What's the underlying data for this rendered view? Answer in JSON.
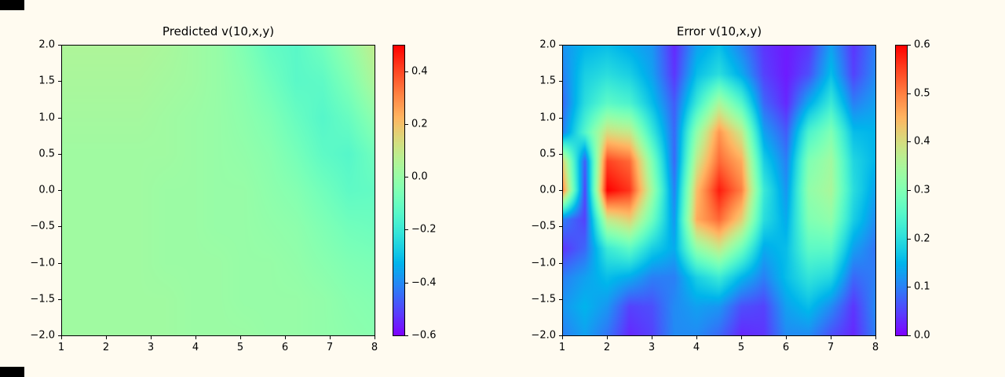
{
  "page": {
    "background_color": "#fffbf0",
    "artifact_color": "#000000"
  },
  "chart_data": [
    {
      "type": "heatmap",
      "title": "Predicted v(10,x,y)",
      "colormap": "rainbow",
      "x_range": [
        1,
        8
      ],
      "y_range": [
        -2,
        2
      ],
      "vmin": -0.6,
      "vmax": 0.5,
      "x_ticks": {
        "values": [
          1,
          2,
          3,
          4,
          5,
          6,
          7,
          8
        ],
        "labels": [
          "1",
          "2",
          "3",
          "4",
          "5",
          "6",
          "7",
          "8"
        ]
      },
      "y_ticks": {
        "values": [
          2.0,
          1.5,
          1.0,
          0.5,
          0.0,
          -0.5,
          -1.0,
          -1.5,
          -2.0
        ],
        "labels": [
          "2.0",
          "1.5",
          "1.0",
          "0.5",
          "0.0",
          "−0.5",
          "−1.0",
          "−1.5",
          "−2.0"
        ]
      },
      "colorbar_ticks": {
        "values": [
          0.4,
          0.2,
          0.0,
          -0.2,
          -0.4,
          -0.6
        ],
        "labels": [
          "0.4",
          "0.2",
          "0.0",
          "−0.2",
          "−0.4",
          "−0.6"
        ]
      },
      "grid": [
        [
          0.05,
          0.05,
          0.05,
          0.05,
          0.04,
          0.02,
          0.0,
          -0.05,
          -0.11,
          -0.13,
          -0.08,
          0.0,
          0.09
        ],
        [
          0.04,
          0.04,
          0.04,
          0.04,
          0.03,
          0.02,
          0.0,
          -0.03,
          -0.08,
          -0.13,
          -0.12,
          -0.05,
          0.05
        ],
        [
          0.03,
          0.03,
          0.03,
          0.03,
          0.02,
          0.01,
          0.0,
          -0.02,
          -0.05,
          -0.1,
          -0.14,
          -0.1,
          -0.02
        ],
        [
          0.02,
          0.02,
          0.02,
          0.02,
          0.02,
          0.01,
          0.0,
          -0.01,
          -0.03,
          -0.07,
          -0.12,
          -0.14,
          -0.08
        ],
        [
          0.02,
          0.02,
          0.02,
          0.02,
          0.01,
          0.01,
          0.0,
          0.0,
          -0.02,
          -0.04,
          -0.08,
          -0.12,
          -0.11
        ],
        [
          0.02,
          0.02,
          0.02,
          0.02,
          0.01,
          0.01,
          0.0,
          0.0,
          -0.01,
          -0.02,
          -0.05,
          -0.08,
          -0.09
        ],
        [
          0.02,
          0.02,
          0.02,
          0.02,
          0.01,
          0.01,
          0.01,
          0.0,
          0.0,
          -0.01,
          -0.03,
          -0.05,
          -0.06
        ],
        [
          0.02,
          0.02,
          0.02,
          0.02,
          0.02,
          0.01,
          0.01,
          0.0,
          0.0,
          0.0,
          -0.01,
          -0.03,
          -0.04
        ],
        [
          0.02,
          0.02,
          0.02,
          0.02,
          0.02,
          0.01,
          0.01,
          0.01,
          0.0,
          0.0,
          -0.01,
          -0.02,
          -0.03
        ]
      ]
    },
    {
      "type": "heatmap",
      "title": "Error v(10,x,y)",
      "colormap": "rainbow",
      "x_range": [
        1,
        8
      ],
      "y_range": [
        -2,
        2
      ],
      "vmin": 0.0,
      "vmax": 0.6,
      "x_ticks": {
        "values": [
          1,
          2,
          3,
          4,
          5,
          6,
          7,
          8
        ],
        "labels": [
          "1",
          "2",
          "3",
          "4",
          "5",
          "6",
          "7",
          "8"
        ]
      },
      "y_ticks": {
        "values": [
          2.0,
          1.5,
          1.0,
          0.5,
          0.0,
          -0.5,
          -1.0,
          -1.5,
          -2.0
        ],
        "labels": [
          "2.0",
          "1.5",
          "1.0",
          "0.5",
          "0.0",
          "−0.5",
          "−1.0",
          "−1.5",
          "−2.0"
        ]
      },
      "colorbar_ticks": {
        "values": [
          0.6,
          0.5,
          0.4,
          0.3,
          0.2,
          0.1,
          0.0
        ],
        "labels": [
          "0.6",
          "0.5",
          "0.4",
          "0.3",
          "0.2",
          "0.1",
          "0.0"
        ]
      },
      "grid": [
        [
          0.12,
          0.15,
          0.16,
          0.14,
          0.12,
          0.03,
          0.13,
          0.16,
          0.1,
          0.04,
          0.02,
          0.04,
          0.13,
          0.04,
          0.1
        ],
        [
          0.1,
          0.18,
          0.2,
          0.18,
          0.13,
          0.04,
          0.16,
          0.2,
          0.14,
          0.05,
          0.02,
          0.06,
          0.16,
          0.05,
          0.11
        ],
        [
          0.08,
          0.2,
          0.26,
          0.24,
          0.16,
          0.07,
          0.22,
          0.35,
          0.25,
          0.08,
          0.03,
          0.14,
          0.22,
          0.1,
          0.13
        ],
        [
          0.1,
          0.25,
          0.4,
          0.38,
          0.22,
          0.08,
          0.32,
          0.48,
          0.38,
          0.13,
          0.07,
          0.24,
          0.3,
          0.16,
          0.15
        ],
        [
          0.42,
          0.07,
          0.55,
          0.52,
          0.3,
          0.08,
          0.38,
          0.52,
          0.46,
          0.18,
          0.1,
          0.3,
          0.34,
          0.19,
          0.15
        ],
        [
          0.5,
          0.05,
          0.6,
          0.56,
          0.34,
          0.1,
          0.44,
          0.58,
          0.5,
          0.22,
          0.12,
          0.32,
          0.35,
          0.2,
          0.13
        ],
        [
          0.1,
          0.05,
          0.38,
          0.42,
          0.28,
          0.12,
          0.46,
          0.52,
          0.42,
          0.2,
          0.14,
          0.3,
          0.32,
          0.18,
          0.11
        ],
        [
          0.04,
          0.08,
          0.22,
          0.26,
          0.18,
          0.14,
          0.32,
          0.38,
          0.28,
          0.14,
          0.16,
          0.26,
          0.26,
          0.13,
          0.09
        ],
        [
          0.1,
          0.13,
          0.16,
          0.14,
          0.1,
          0.1,
          0.18,
          0.22,
          0.15,
          0.1,
          0.16,
          0.21,
          0.19,
          0.08,
          0.1
        ],
        [
          0.12,
          0.15,
          0.12,
          0.05,
          0.06,
          0.11,
          0.13,
          0.12,
          0.06,
          0.05,
          0.13,
          0.16,
          0.11,
          0.04,
          0.11
        ],
        [
          0.1,
          0.13,
          0.09,
          0.03,
          0.05,
          0.11,
          0.11,
          0.08,
          0.03,
          0.04,
          0.11,
          0.11,
          0.06,
          0.03,
          0.1
        ]
      ]
    }
  ]
}
